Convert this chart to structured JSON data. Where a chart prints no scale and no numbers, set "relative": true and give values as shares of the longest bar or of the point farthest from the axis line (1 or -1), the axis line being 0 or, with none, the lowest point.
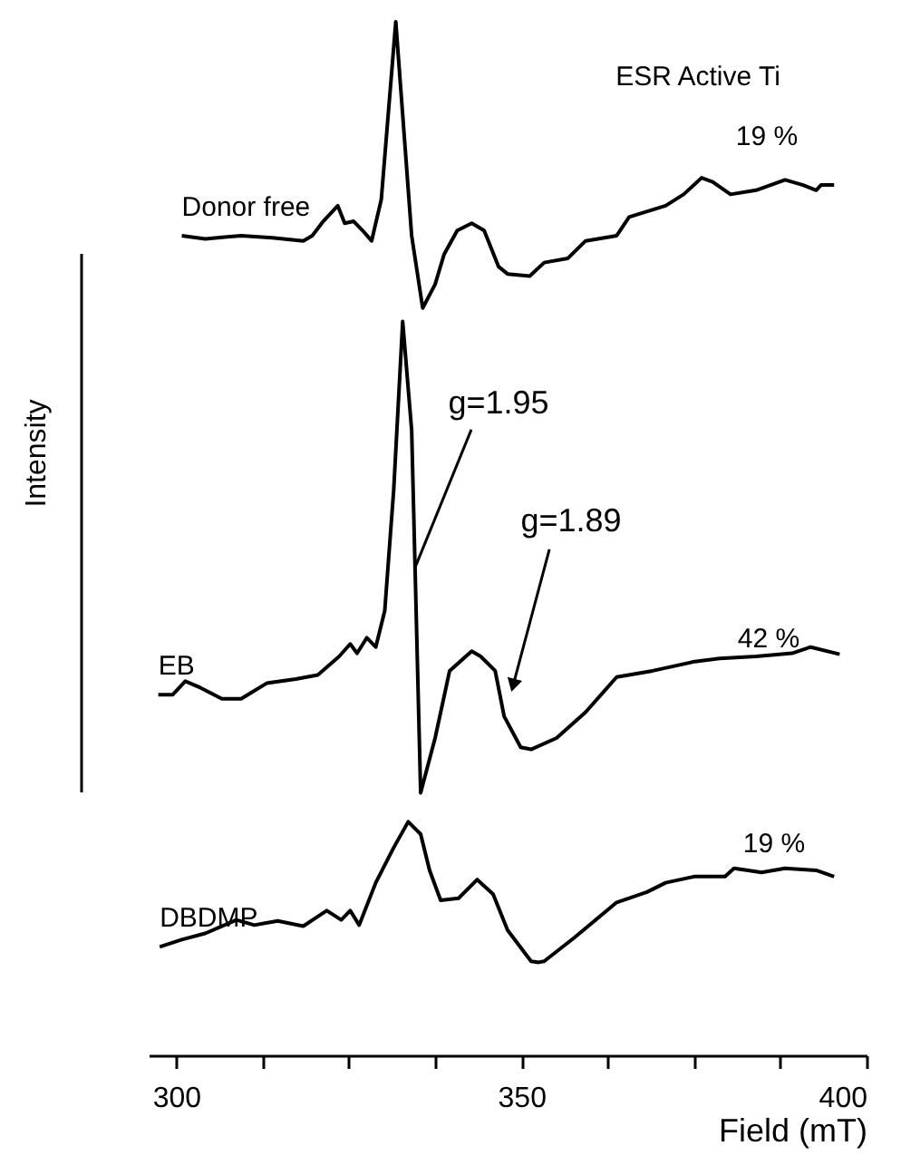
{
  "chart_data": {
    "type": "line",
    "xlabel": "Field (mT)",
    "ylabel": "Intensity",
    "relative": true,
    "legend": false,
    "grid": false,
    "xlim": [
      296,
      400
    ],
    "xticks": [
      300,
      {
        "value": 312.5,
        "label": null
      },
      {
        "value": 325,
        "label": null
      },
      {
        "value": 337.5,
        "label": null
      },
      350,
      {
        "value": 362.5,
        "label": null
      },
      {
        "value": 375,
        "label": null
      },
      {
        "value": 387.5,
        "label": null
      },
      400
    ],
    "series": [
      {
        "name": "Donor free",
        "color": "#000000",
        "x": [
          300.8,
          304.2,
          309.4,
          313.9,
          318.4,
          319.7,
          321.3,
          323.4,
          324.4,
          325.7,
          327.0,
          328.3,
          329.7,
          331.8,
          334.1,
          335.7,
          337.5,
          338.8,
          340.7,
          342.8,
          344.6,
          346.7,
          348.0,
          351.2,
          353.3,
          356.7,
          359.3,
          363.8,
          365.6,
          370.9,
          373.5,
          376.1,
          377.7,
          380.3,
          384.0,
          388.2,
          390.8,
          392.7,
          393.4,
          395.3
        ],
        "values": [
          0.793,
          0.79,
          0.793,
          0.791,
          0.788,
          0.793,
          0.807,
          0.822,
          0.805,
          0.807,
          0.798,
          0.788,
          0.828,
          1,
          0.793,
          0.723,
          0.746,
          0.775,
          0.798,
          0.805,
          0.798,
          0.763,
          0.756,
          0.754,
          0.767,
          0.771,
          0.788,
          0.793,
          0.811,
          0.822,
          0.833,
          0.849,
          0.845,
          0.833,
          0.837,
          0.847,
          0.842,
          0.837,
          0.842,
          0.842
        ]
      },
      {
        "name": "EB",
        "color": "#000000",
        "x": [
          297.4,
          299.5,
          301.3,
          303.4,
          306.6,
          309.4,
          313.1,
          317.3,
          320.5,
          323.6,
          325.2,
          326.2,
          327.6,
          328.9,
          330.2,
          331.5,
          332.8,
          334.1,
          335.4,
          337.5,
          339.6,
          342.8,
          344.1,
          346.2,
          347.5,
          349.9,
          351.4,
          355.1,
          359.3,
          363.8,
          369.0,
          375.1,
          378.7,
          384.0,
          389.2,
          391.9,
          396.1
        ],
        "values": [
          0.349,
          0.349,
          0.362,
          0.356,
          0.345,
          0.345,
          0.36,
          0.364,
          0.368,
          0.386,
          0.398,
          0.389,
          0.404,
          0.395,
          0.43,
          0.547,
          0.71,
          0.605,
          0.254,
          0.307,
          0.372,
          0.391,
          0.386,
          0.372,
          0.328,
          0.298,
          0.296,
          0.307,
          0.332,
          0.366,
          0.372,
          0.381,
          0.384,
          0.386,
          0.389,
          0.395,
          0.388
        ]
      },
      {
        "name": "DBDMP",
        "color": "#000000",
        "x": [
          297.6,
          300.8,
          304.2,
          308.7,
          311.3,
          314.7,
          318.4,
          321.8,
          323.9,
          325.2,
          326.5,
          328.9,
          331.5,
          333.6,
          335.4,
          336.7,
          338.3,
          340.9,
          343.6,
          345.9,
          348.0,
          351.4,
          352.5,
          353.3,
          357.7,
          363.8,
          368.2,
          370.9,
          375.1,
          379.5,
          380.8,
          384.8,
          388.2,
          392.7,
          395.3
        ],
        "values": [
          0.105,
          0.112,
          0.118,
          0.131,
          0.126,
          0.13,
          0.125,
          0.14,
          0.131,
          0.14,
          0.126,
          0.167,
          0.201,
          0.226,
          0.214,
          0.179,
          0.15,
          0.152,
          0.17,
          0.156,
          0.121,
          0.091,
          0.09,
          0.091,
          0.114,
          0.148,
          0.158,
          0.167,
          0.173,
          0.173,
          0.181,
          0.177,
          0.181,
          0.179,
          0.173
        ]
      }
    ],
    "annotations": [
      "ESR Active Ti",
      "19 %",
      "42 %",
      "19 %",
      {
        "text": "g=1.95",
        "x": 334.6,
        "y": 0.472
      },
      {
        "text": "g=1.89",
        "x": 348.8,
        "y": 0.358
      }
    ]
  }
}
